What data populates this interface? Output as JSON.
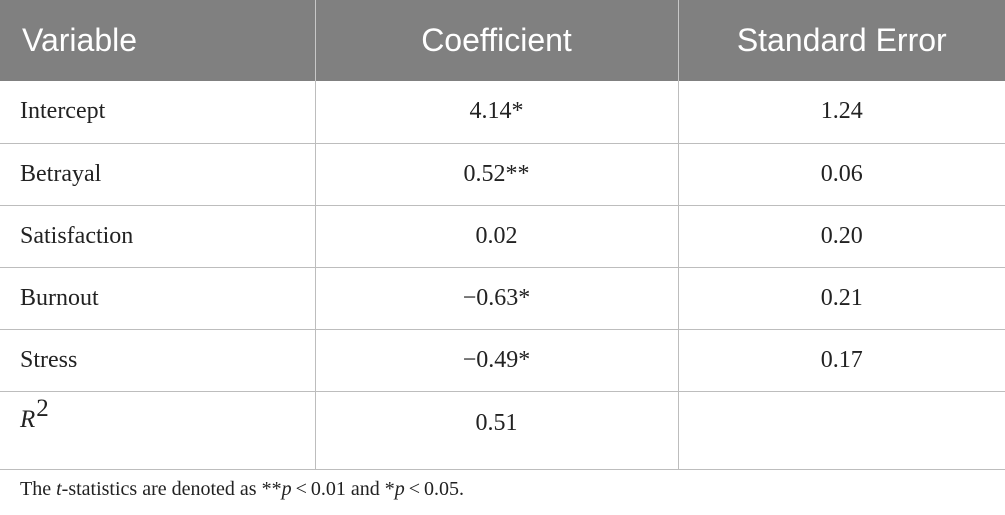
{
  "table": {
    "headers": [
      "Variable",
      "Coefficient",
      "Standard Error"
    ],
    "rows": [
      {
        "variable": "Intercept",
        "coefficient": "4.14*",
        "se": "1.24"
      },
      {
        "variable": "Betrayal",
        "coefficient": "0.52**",
        "se": "0.06"
      },
      {
        "variable": "Satisfaction",
        "coefficient": "0.02",
        "se": "0.20"
      },
      {
        "variable": "Burnout",
        "coefficient": "−0.63*",
        "se": "0.21"
      },
      {
        "variable": "Stress",
        "coefficient": "−0.49*",
        "se": "0.17"
      }
    ],
    "r2": {
      "symbol": "R",
      "superscript": "2",
      "coefficient": "0.51",
      "se": ""
    }
  },
  "footnote": {
    "part1": "The ",
    "t": "t",
    "part2": "-statistics are denoted as **",
    "p1": "p",
    "part3": " < 0.01 and *",
    "p2": "p",
    "part4": " < 0.05."
  }
}
